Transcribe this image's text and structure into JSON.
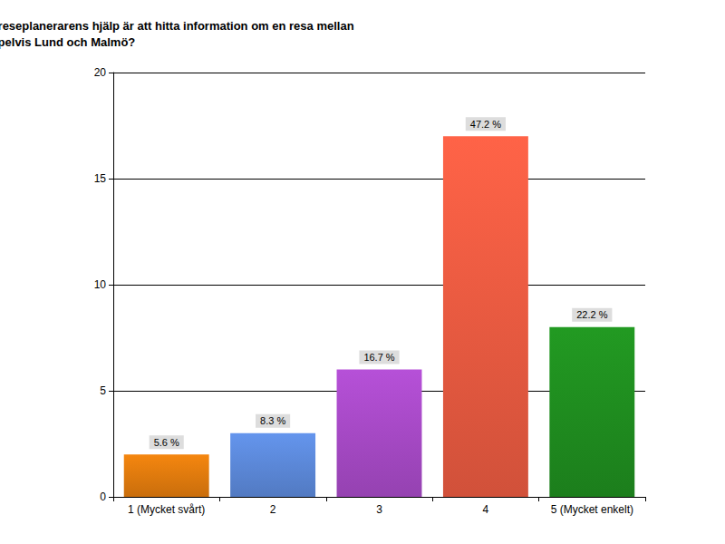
{
  "chart_data": {
    "type": "bar",
    "title": "På en skala, hur enkelt tycker du att det med reseplanerarens hjälp är att hitta information om en resa mellan exempelvis Lund och Malmö?",
    "categories": [
      "1 (Mycket svårt)",
      "2",
      "3",
      "4",
      "5 (Mycket enkelt)"
    ],
    "values": [
      2,
      3,
      6,
      17,
      8
    ],
    "percent_labels": [
      "5.6 %",
      "8.3 %",
      "16.7 %",
      "47.2 %",
      "22.2 %"
    ],
    "colors": [
      "#f5860f",
      "#6495ed",
      "#b650d8",
      "#ff6347",
      "#229a22"
    ],
    "ylim": [
      0,
      20
    ],
    "yticks": [
      0,
      5,
      10,
      15,
      20
    ],
    "grid": true
  }
}
